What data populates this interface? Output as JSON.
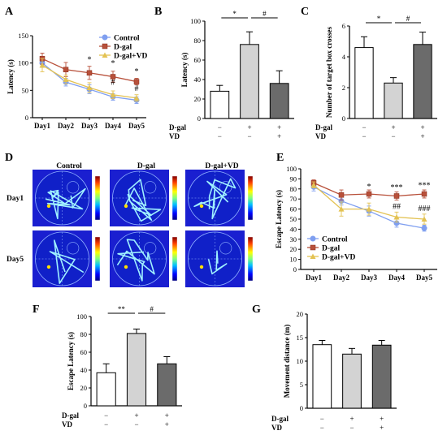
{
  "panels": {
    "A": "A",
    "B": "B",
    "C": "C",
    "D": "D",
    "E": "E",
    "F": "F",
    "G": "G"
  },
  "treatments": {
    "dgal_label": "D-gal",
    "vd_label": "VD",
    "minus": "−",
    "plus": "+",
    "dgal_signs": [
      "−",
      "+",
      "+"
    ],
    "vd_signs": [
      "−",
      "−",
      "+"
    ]
  },
  "colors": {
    "control": "#7f9ff0",
    "dgal": "#b8503a",
    "vd": "#e3c252",
    "bar_control": "#ffffff",
    "bar_dgal": "#d3d3d3",
    "bar_vd": "#6b6b6b"
  },
  "chart_data": [
    {
      "panel": "A",
      "type": "line",
      "ylabel": "Latency (s)",
      "ylim": [
        0,
        150
      ],
      "yticks": [
        0,
        50,
        100,
        150
      ],
      "categories": [
        "Day1",
        "Day2",
        "Day3",
        "Day4",
        "Day5"
      ],
      "legend": "top-right",
      "series": [
        {
          "name": "Control",
          "marker": "circle",
          "values": [
            100,
            65,
            52,
            38,
            32
          ],
          "errors": [
            8,
            7,
            8,
            6,
            6
          ]
        },
        {
          "name": "D-gal",
          "marker": "square",
          "values": [
            108,
            88,
            82,
            75,
            66
          ],
          "errors": [
            10,
            13,
            12,
            10,
            6
          ]
        },
        {
          "name": "D-gal+VD",
          "marker": "triangle",
          "values": [
            96,
            70,
            55,
            42,
            36
          ],
          "errors": [
            12,
            8,
            9,
            7,
            6
          ]
        }
      ],
      "annotations": [
        {
          "x": "Day3",
          "y": 102,
          "text": "*"
        },
        {
          "x": "Day4",
          "y": 95,
          "text": "*"
        },
        {
          "x": "Day4",
          "y": 60,
          "text": "#"
        },
        {
          "x": "Day5",
          "y": 80,
          "text": "*"
        },
        {
          "x": "Day5",
          "y": 49,
          "text": "#"
        }
      ]
    },
    {
      "panel": "B",
      "type": "bar",
      "ylabel": "Latency (s)",
      "ylim": [
        0,
        100
      ],
      "yticks": [
        0,
        20,
        40,
        60,
        80,
        100
      ],
      "values": [
        28,
        76,
        36
      ],
      "errors": [
        6,
        13,
        13
      ],
      "significance": [
        {
          "from": 0,
          "to": 1,
          "text": "*"
        },
        {
          "from": 1,
          "to": 2,
          "text": "#"
        }
      ]
    },
    {
      "panel": "C",
      "type": "bar",
      "ylabel": "Number of target box crosses",
      "ylim": [
        0,
        6
      ],
      "yticks": [
        0,
        2,
        4,
        6
      ],
      "values": [
        4.6,
        2.3,
        4.8
      ],
      "errors": [
        0.7,
        0.35,
        0.8
      ],
      "significance": [
        {
          "from": 0,
          "to": 1,
          "text": "*"
        },
        {
          "from": 1,
          "to": 2,
          "text": "#"
        }
      ]
    },
    {
      "panel": "E",
      "type": "line",
      "ylabel": "Escape Latency (s)",
      "ylim": [
        0,
        100
      ],
      "yticks": [
        0,
        10,
        20,
        30,
        40,
        50,
        60,
        70,
        80,
        90,
        100
      ],
      "categories": [
        "Day1",
        "Day2",
        "Day3",
        "Day4",
        "Day5"
      ],
      "legend": "bottom-left",
      "series": [
        {
          "name": "Control",
          "marker": "circle",
          "values": [
            82,
            68,
            58,
            46,
            41
          ],
          "errors": [
            4,
            4,
            5,
            4,
            3
          ]
        },
        {
          "name": "D-gal",
          "marker": "square",
          "values": [
            86,
            74,
            75,
            73,
            75
          ],
          "errors": [
            3,
            5,
            4,
            4,
            4
          ]
        },
        {
          "name": "D-gal+VD",
          "marker": "triangle",
          "values": [
            84,
            60,
            60,
            52,
            50
          ],
          "errors": [
            3,
            7,
            6,
            5,
            5
          ]
        }
      ],
      "annotations": [
        {
          "x": "Day3",
          "y": 80,
          "text": "*"
        },
        {
          "x": "Day4",
          "y": 79,
          "text": "***"
        },
        {
          "x": "Day4",
          "y": 60,
          "text": "##"
        },
        {
          "x": "Day5",
          "y": 81,
          "text": "***"
        },
        {
          "x": "Day5",
          "y": 58,
          "text": "###"
        }
      ]
    },
    {
      "panel": "F",
      "type": "bar",
      "ylabel": "Escape Latency (s)",
      "ylim": [
        0,
        100
      ],
      "yticks": [
        0,
        20,
        40,
        60,
        80,
        100
      ],
      "values": [
        37,
        81,
        47
      ],
      "errors": [
        10,
        5,
        8
      ],
      "significance": [
        {
          "from": 0,
          "to": 1,
          "text": "**"
        },
        {
          "from": 1,
          "to": 2,
          "text": "#"
        }
      ]
    },
    {
      "panel": "G",
      "type": "bar",
      "ylabel": "Movement distance (m)",
      "ylim": [
        0,
        20
      ],
      "yticks": [
        0,
        5,
        10,
        15,
        20
      ],
      "values": [
        13.5,
        11.5,
        13.4
      ],
      "errors": [
        0.9,
        1.2,
        1.0
      ],
      "significance": []
    }
  ],
  "heatmaps": {
    "columns": [
      "Control",
      "D-gal",
      "D-gal+VD"
    ],
    "rows": [
      "Day1",
      "Day5"
    ],
    "scale_top": "MAX",
    "scale_bottom": "0"
  }
}
